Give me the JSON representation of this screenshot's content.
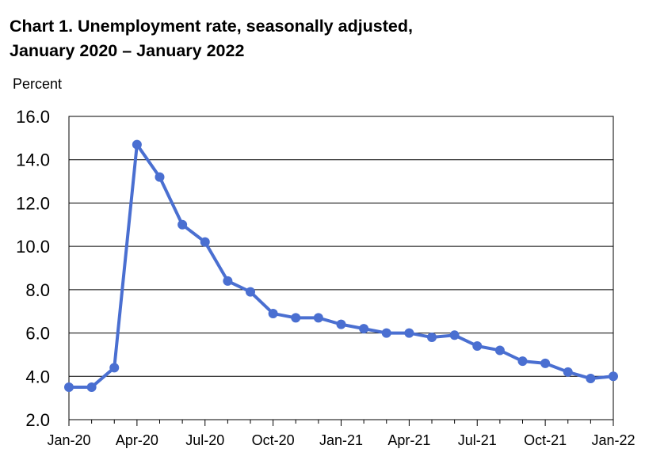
{
  "chart_data": {
    "type": "line",
    "title": "Chart 1. Unemployment rate, seasonally adjusted,",
    "subtitle": "January 2020 – January 2022",
    "ylabel": "Percent",
    "xlabel": "",
    "ylim": [
      2.0,
      16.0
    ],
    "yticks": [
      "2.0",
      "4.0",
      "6.0",
      "8.0",
      "10.0",
      "12.0",
      "14.0",
      "16.0"
    ],
    "xtick_labels": [
      "Jan-20",
      "Apr-20",
      "Jul-20",
      "Oct-20",
      "Jan-21",
      "Apr-21",
      "Jul-21",
      "Oct-21",
      "Jan-22"
    ],
    "grid": "horizontal",
    "x": [
      "Jan-20",
      "Feb-20",
      "Mar-20",
      "Apr-20",
      "May-20",
      "Jun-20",
      "Jul-20",
      "Aug-20",
      "Sep-20",
      "Oct-20",
      "Nov-20",
      "Dec-20",
      "Jan-21",
      "Feb-21",
      "Mar-21",
      "Apr-21",
      "May-21",
      "Jun-21",
      "Jul-21",
      "Aug-21",
      "Sep-21",
      "Oct-21",
      "Nov-21",
      "Dec-21",
      "Jan-22"
    ],
    "series": [
      {
        "values": [
          3.5,
          3.5,
          4.4,
          14.7,
          13.2,
          11.0,
          10.2,
          8.4,
          7.9,
          6.9,
          6.7,
          6.7,
          6.4,
          6.2,
          6.0,
          6.0,
          5.8,
          5.9,
          5.4,
          5.2,
          4.7,
          4.6,
          4.2,
          3.9,
          4.0
        ],
        "color": "#4a6fd1"
      }
    ]
  }
}
